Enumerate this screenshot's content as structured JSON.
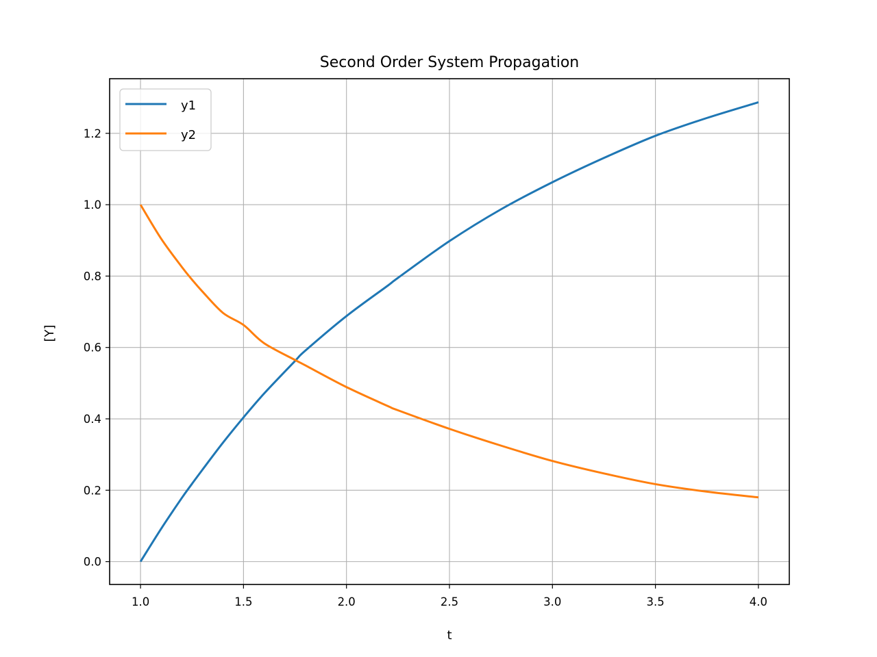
{
  "chart_data": {
    "type": "line",
    "title": "Second Order System Propagation",
    "xlabel": "t",
    "ylabel": "[Y]",
    "xlim": [
      0.85,
      4.15
    ],
    "ylim": [
      -0.064,
      1.353
    ],
    "xticks": [
      1.0,
      1.5,
      2.0,
      2.5,
      3.0,
      3.5,
      4.0
    ],
    "xtick_labels": [
      "1.0",
      "1.5",
      "2.0",
      "2.5",
      "3.0",
      "3.5",
      "4.0"
    ],
    "yticks": [
      0.0,
      0.2,
      0.4,
      0.6,
      0.8,
      1.0,
      1.2
    ],
    "ytick_labels": [
      "0.0",
      "0.2",
      "0.4",
      "0.6",
      "0.8",
      "1.0",
      "1.2"
    ],
    "grid": true,
    "legend_position": "upper left",
    "x": [
      1.0,
      1.1,
      1.2,
      1.25,
      1.3,
      1.4,
      1.5,
      1.6,
      1.75,
      1.8,
      2.0,
      2.2,
      2.25,
      2.5,
      2.75,
      3.0,
      3.25,
      3.5,
      3.75,
      4.0
    ],
    "series": [
      {
        "name": "y1",
        "color": "#1f77b4",
        "values": [
          0.0,
          0.092,
          0.178,
          0.218,
          0.257,
          0.333,
          0.404,
          0.471,
          0.562,
          0.591,
          0.688,
          0.773,
          0.795,
          0.898,
          0.987,
          1.063,
          1.131,
          1.193,
          1.243,
          1.287
        ]
      },
      {
        "name": "y2",
        "color": "#ff7f0e",
        "values": [
          1.0,
          0.905,
          0.826,
          0.79,
          0.757,
          0.697,
          0.663,
          0.612,
          0.565,
          0.55,
          0.489,
          0.436,
          0.424,
          0.372,
          0.325,
          0.282,
          0.247,
          0.217,
          0.196,
          0.18
        ]
      }
    ]
  }
}
